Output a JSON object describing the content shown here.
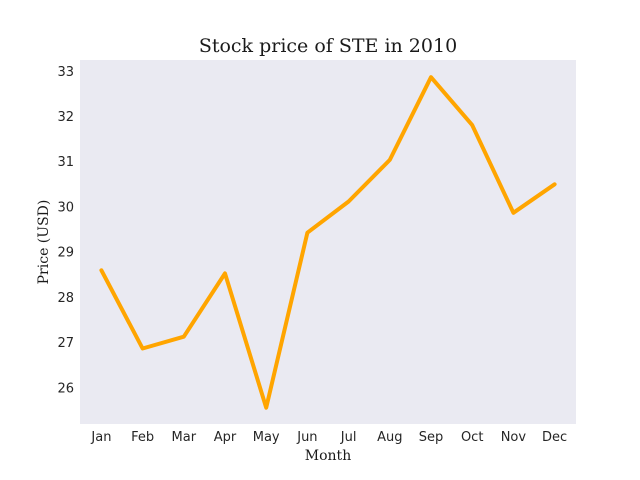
{
  "chart_data": {
    "type": "line",
    "title": "Stock price of STE in 2010",
    "xlabel": "Month",
    "ylabel": "Price (USD)",
    "categories": [
      "Jan",
      "Feb",
      "Mar",
      "Apr",
      "May",
      "Jun",
      "Jul",
      "Aug",
      "Sep",
      "Oct",
      "Nov",
      "Dec"
    ],
    "series": [
      {
        "name": "STE",
        "values": [
          28.6,
          26.87,
          27.13,
          28.53,
          25.56,
          29.43,
          30.12,
          31.04,
          32.87,
          31.81,
          29.87,
          30.5
        ],
        "color": "#FFA500"
      }
    ],
    "yticks": [
      26,
      27,
      28,
      29,
      30,
      31,
      32,
      33
    ],
    "ylim": [
      25.2,
      33.25
    ],
    "grid": false,
    "plot_background": "#EAEAF2"
  }
}
